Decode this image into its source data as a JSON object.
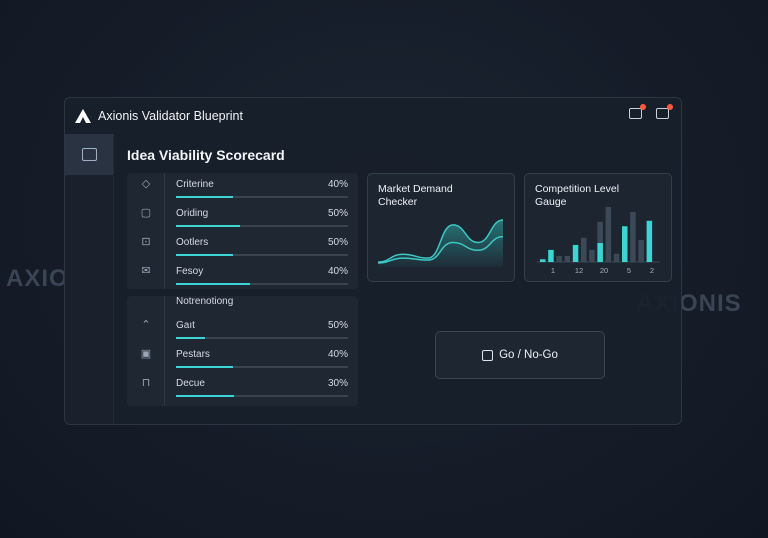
{
  "watermark": "AXIONIS",
  "app": {
    "title": "Axionis Validator Blueprint",
    "icons": [
      "window-icon",
      "activity-icon"
    ],
    "notification_color": "#ff5a3c"
  },
  "sidebar": {
    "items": [
      {
        "icon": "dashboard-icon",
        "active": true
      }
    ]
  },
  "page_title": "Idea Viability Scorecard",
  "panel1": {
    "rows": [
      {
        "icon": "diamond-icon",
        "label": "Criterine",
        "pct": "40%",
        "value": 0.33
      },
      {
        "icon": "chat-icon",
        "label": "Oriding",
        "pct": "50%",
        "value": 0.37
      },
      {
        "icon": "briefcase-icon",
        "label": "Ootlers",
        "pct": "50%",
        "value": 0.33
      },
      {
        "icon": "mail-icon",
        "label": "Fesoy",
        "pct": "40%",
        "value": 0.43
      }
    ]
  },
  "panel2": {
    "heading": "Notrenotiong",
    "rows": [
      {
        "icon": "chevron-up-icon",
        "label": "Gaıt",
        "pct": "50%",
        "value": 0.17
      },
      {
        "icon": "square-icon",
        "label": "Pestars",
        "pct": "40%",
        "value": 0.33
      },
      {
        "icon": "lock-icon",
        "label": "Decue",
        "pct": "30%",
        "value": 0.34
      }
    ]
  },
  "market_card": {
    "title_line1": "Market Demand",
    "title_line2": "Checker"
  },
  "competition_card": {
    "title_line1": "Competition Level",
    "title_line2": "Gauge"
  },
  "chart_data": [
    {
      "type": "area",
      "title": "Market Demand Checker",
      "series": [
        {
          "values": [
            2,
            10,
            6,
            40,
            22,
            45
          ]
        },
        {
          "values": [
            1,
            6,
            4,
            22,
            14,
            28
          ]
        }
      ]
    },
    {
      "type": "bar",
      "title": "Competition Level Gauge",
      "tick_labels": [
        "1",
        "12",
        "20",
        "5",
        "2"
      ],
      "values": [
        5,
        22,
        11,
        11,
        31,
        44,
        22,
        73,
        100,
        15,
        65,
        91,
        40,
        75
      ],
      "colors": [
        "#3dd4d4",
        "#3dd4d4",
        "#3d4957",
        "#3d4957",
        "#3dd4d4",
        "#3d4957",
        "#3d4957",
        "#3d4957",
        "#3d4957",
        "#3d4957",
        "#3dd4d4",
        "#3d4957",
        "#3d4957",
        "#3dd4d4"
      ]
    }
  ],
  "go_button": {
    "label": "Go / No-Go",
    "icon": "clipboard-check-icon"
  },
  "accent": "#3dd4d4"
}
